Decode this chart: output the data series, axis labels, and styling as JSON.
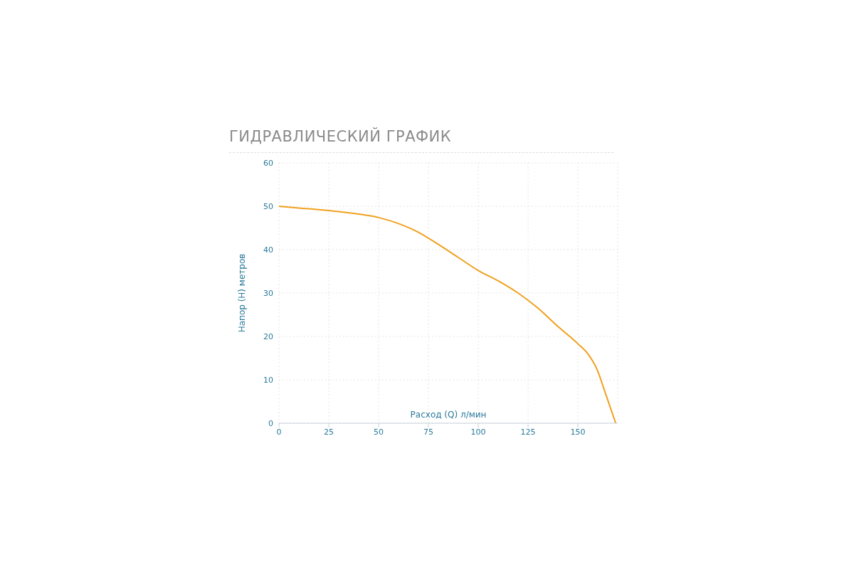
{
  "chart_data": {
    "type": "line",
    "title": "ГИДРАВЛИЧЕСКИЙ ГРАФИК",
    "xlabel": "Расход (Q) л/мин",
    "ylabel": "Напор (H) метров",
    "x": [
      0,
      10,
      25,
      40,
      50,
      60,
      70,
      80,
      90,
      100,
      110,
      120,
      130,
      140,
      150,
      155,
      160,
      163,
      166,
      169
    ],
    "series": [
      {
        "color": "#f0a01e",
        "values": [
          50,
          49.6,
          49,
          48.2,
          47.4,
          46,
          44,
          41.2,
          38.2,
          35.2,
          32.8,
          30,
          26.5,
          22.3,
          18.3,
          16,
          12,
          8,
          4,
          0
        ]
      }
    ],
    "xlim": [
      0,
      170
    ],
    "xticks": [
      0,
      25,
      50,
      75,
      100,
      125,
      150
    ],
    "ylim": [
      0,
      60
    ],
    "yticks": [
      0,
      10,
      20,
      30,
      40,
      50,
      60
    ],
    "grid": true,
    "legend": false,
    "marker": "none",
    "line_style": "solid"
  }
}
